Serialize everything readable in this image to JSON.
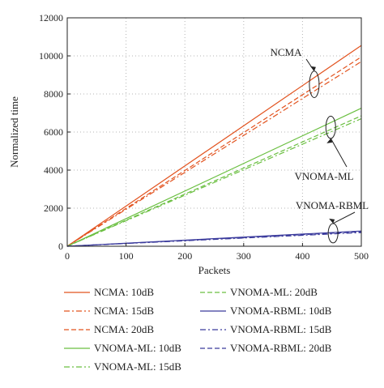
{
  "chart_data": {
    "type": "line",
    "xlabel": "Packets",
    "ylabel": "Normalized time",
    "xlim": [
      0,
      500
    ],
    "ylim": [
      0,
      12000
    ],
    "xticks": [
      "0",
      "100",
      "200",
      "300",
      "400",
      "500"
    ],
    "yticks": [
      "0",
      "2000",
      "4000",
      "6000",
      "8000",
      "10000",
      "12000"
    ],
    "grid": true,
    "legend_position": "below",
    "annotations": [
      {
        "text": "NCMA"
      },
      {
        "text": "VNOMA-ML"
      },
      {
        "text": "VNOMA-RBML"
      }
    ],
    "series": [
      {
        "name": "NCMA: 10dB",
        "color": "#e2531f",
        "dash": "solid",
        "x": [
          0,
          500
        ],
        "y": [
          0,
          10550
        ]
      },
      {
        "name": "NCMA: 15dB",
        "color": "#e2531f",
        "dash": "dashdot",
        "x": [
          0,
          500
        ],
        "y": [
          0,
          9700
        ]
      },
      {
        "name": "NCMA: 20dB",
        "color": "#e2531f",
        "dash": "dashed",
        "x": [
          0,
          500
        ],
        "y": [
          0,
          9950
        ]
      },
      {
        "name": "VNOMA-ML: 10dB",
        "color": "#6abf40",
        "dash": "solid",
        "x": [
          0,
          500
        ],
        "y": [
          0,
          7250
        ]
      },
      {
        "name": "VNOMA-ML: 15dB",
        "color": "#6abf40",
        "dash": "dashdot",
        "x": [
          0,
          500
        ],
        "y": [
          0,
          6700
        ]
      },
      {
        "name": "VNOMA-ML: 20dB",
        "color": "#6abf40",
        "dash": "dashed",
        "x": [
          0,
          500
        ],
        "y": [
          0,
          6850
        ]
      },
      {
        "name": "VNOMA-RBML: 10dB",
        "color": "#3a3a9c",
        "dash": "solid",
        "x": [
          0,
          500
        ],
        "y": [
          0,
          800
        ]
      },
      {
        "name": "VNOMA-RBML: 15dB",
        "color": "#3a3a9c",
        "dash": "dashdot",
        "x": [
          0,
          500
        ],
        "y": [
          0,
          720
        ]
      },
      {
        "name": "VNOMA-RBML: 20dB",
        "color": "#3a3a9c",
        "dash": "dashed",
        "x": [
          0,
          500
        ],
        "y": [
          0,
          760
        ]
      }
    ]
  }
}
